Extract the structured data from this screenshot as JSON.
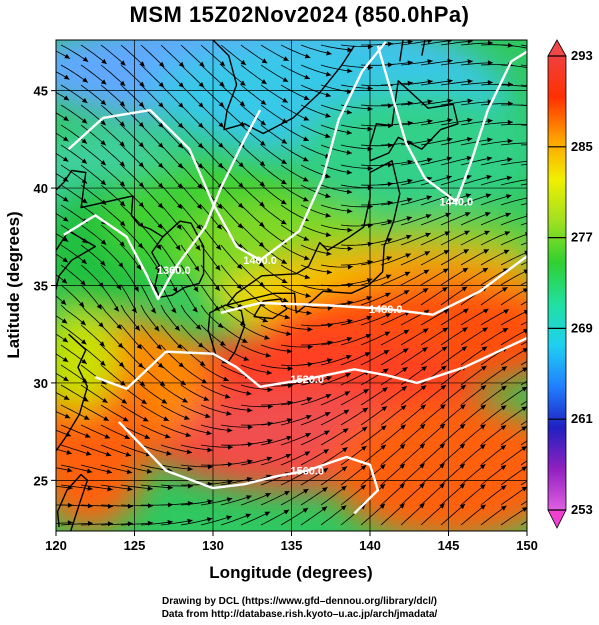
{
  "title": "MSM 15Z02Nov2024 (850.0hPa)",
  "chart_data": {
    "type": "heatmap",
    "title": "MSM 15Z02Nov2024 (850.0hPa)",
    "xlabel": "Longitude (degrees)",
    "ylabel": "Latitude  (degrees)",
    "xlim": [
      120,
      150
    ],
    "ylim": [
      22.4,
      47.6
    ],
    "x_ticks": [
      "120",
      "125",
      "130",
      "135",
      "140",
      "145",
      "150"
    ],
    "y_ticks": [
      "25",
      "30",
      "35",
      "40",
      "45"
    ],
    "colorbar": {
      "min": 253,
      "max": 293,
      "ticks": [
        "293",
        "285",
        "277",
        "269",
        "261",
        "253"
      ],
      "colors": [
        "#e060e0",
        "#9020c0",
        "#2020c0",
        "#2080ff",
        "#20d0f0",
        "#20e0a0",
        "#30d030",
        "#a0e020",
        "#f0f000",
        "#ffa000",
        "#ff3000",
        "#f04040"
      ]
    },
    "contours": [
      {
        "label": "1360.0",
        "points": [
          [
            120.5,
            37.6
          ],
          [
            122.5,
            38.6
          ],
          [
            124.5,
            37.5
          ],
          [
            125.8,
            35.5
          ],
          [
            126.5,
            34.3
          ],
          [
            127.5,
            35.8
          ],
          [
            129.5,
            38.0
          ],
          [
            130.5,
            40.0
          ],
          [
            132.0,
            42.5
          ],
          [
            133.0,
            44.0
          ]
        ]
      },
      {
        "label": "1400.0",
        "points": [
          [
            120.8,
            42.0
          ],
          [
            123.0,
            43.6
          ],
          [
            126.0,
            44.0
          ],
          [
            128.5,
            42.0
          ],
          [
            130.0,
            39.2
          ],
          [
            131.5,
            37.0
          ],
          [
            133.0,
            36.3
          ],
          [
            135.5,
            37.8
          ],
          [
            137.0,
            40.5
          ],
          [
            138.0,
            43.5
          ],
          [
            139.5,
            46.0
          ],
          [
            141.0,
            47.5
          ]
        ]
      },
      {
        "label": "1440.0",
        "points": [
          [
            140.5,
            47.3
          ],
          [
            141.5,
            44.5
          ],
          [
            142.3,
            42.3
          ],
          [
            143.5,
            40.5
          ],
          [
            145.5,
            39.3
          ],
          [
            146.5,
            41.5
          ],
          [
            147.5,
            44.0
          ],
          [
            149.0,
            46.5
          ],
          [
            150.0,
            47.0
          ]
        ]
      },
      {
        "label": "1480.0",
        "points": [
          [
            130.5,
            33.6
          ],
          [
            133.0,
            34.1
          ],
          [
            137.0,
            34.0
          ],
          [
            141.0,
            33.8
          ],
          [
            144.0,
            33.5
          ],
          [
            147.0,
            34.7
          ],
          [
            150.0,
            36.5
          ]
        ]
      },
      {
        "label": "1520.0",
        "points": [
          [
            122.5,
            30.3
          ],
          [
            124.5,
            29.7
          ],
          [
            127.0,
            31.6
          ],
          [
            130.0,
            31.5
          ],
          [
            131.5,
            30.8
          ],
          [
            133.0,
            29.8
          ],
          [
            136.0,
            30.2
          ],
          [
            139.0,
            30.7
          ],
          [
            141.0,
            30.4
          ],
          [
            143.0,
            30.0
          ],
          [
            146.0,
            30.8
          ],
          [
            150.0,
            32.3
          ]
        ]
      },
      {
        "label": "1560.0",
        "points": [
          [
            124.0,
            28.0
          ],
          [
            127.0,
            25.5
          ],
          [
            130.0,
            24.6
          ],
          [
            132.0,
            24.8
          ],
          [
            134.0,
            25.2
          ],
          [
            136.0,
            25.5
          ],
          [
            138.5,
            26.2
          ],
          [
            140.0,
            25.8
          ],
          [
            140.5,
            24.5
          ],
          [
            139.0,
            23.3
          ]
        ]
      }
    ]
  },
  "footer": {
    "line1": "Drawing by DCL (https://www.gfd–dennou.org/library/dcl/)",
    "line2": "Data from http://database.rish.kyoto–u.ac.jp/arch/jmadata/"
  }
}
